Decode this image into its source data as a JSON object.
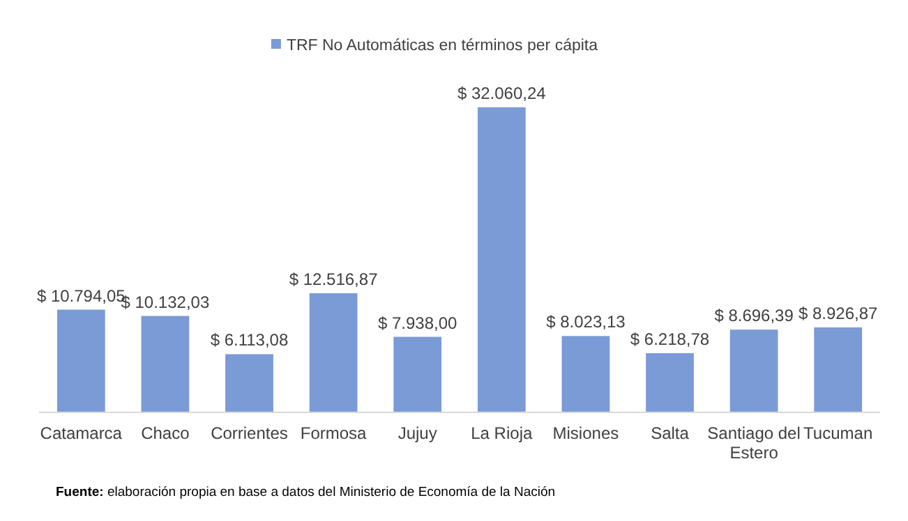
{
  "chart_data": {
    "type": "bar",
    "categories": [
      "Catamarca",
      "Chaco",
      "Corrientes",
      "Formosa",
      "Jujuy",
      "La Rioja",
      "Misiones",
      "Salta",
      "Santiago del Estero",
      "Tucuman"
    ],
    "series": [
      {
        "name": "TRF No Automáticas en términos per cápita",
        "color": "#7b9bd6",
        "values": [
          10794.05,
          10132.03,
          6113.08,
          12516.87,
          7938.0,
          32060.24,
          8023.13,
          6218.78,
          8696.39,
          8926.87
        ],
        "value_labels": [
          "$ 10.794,05",
          "$ 10.132,03",
          "$ 6.113,08",
          "$ 12.516,87",
          "$ 7.938,00",
          "$ 32.060,24",
          "$ 8.023,13",
          "$ 6.218,78",
          "$ 8.696,39",
          "$ 8.926,87"
        ]
      }
    ],
    "legend": "top",
    "annotations": [
      "Fuente: elaboración propia en base a datos del Ministerio de Economía de la Nación"
    ]
  }
}
